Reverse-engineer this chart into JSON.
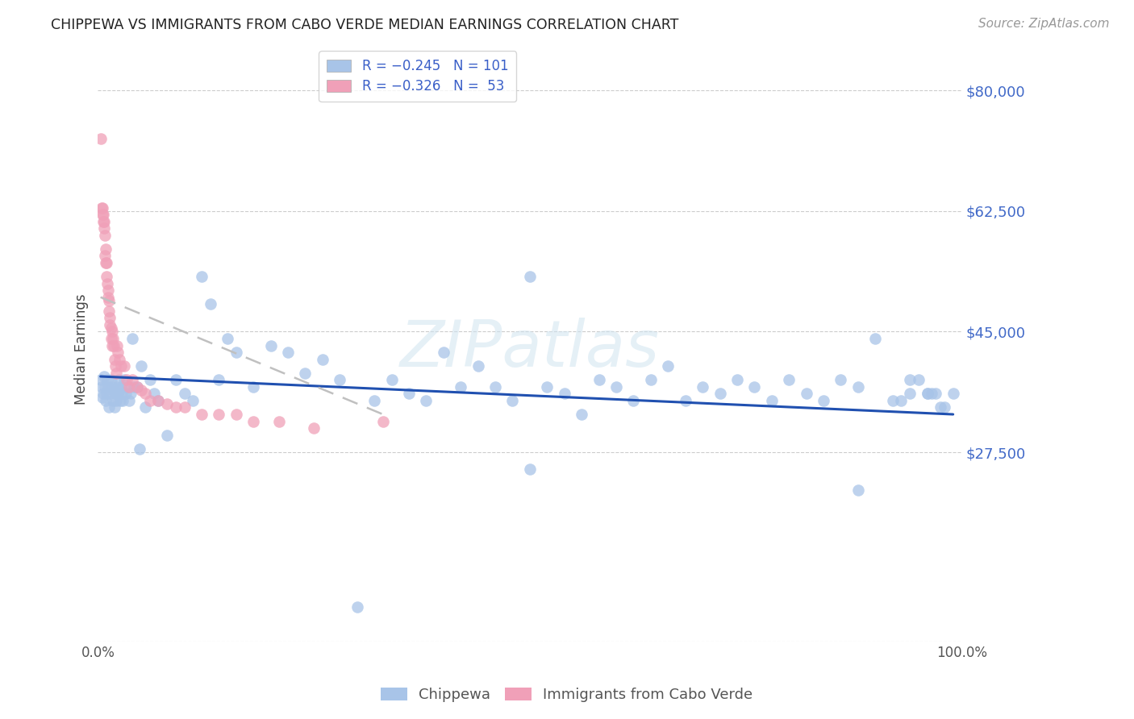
{
  "title": "CHIPPEWA VS IMMIGRANTS FROM CABO VERDE MEDIAN EARNINGS CORRELATION CHART",
  "source": "Source: ZipAtlas.com",
  "ylabel": "Median Earnings",
  "yticks": [
    0,
    27500,
    45000,
    62500,
    80000
  ],
  "ytick_labels": [
    "",
    "$27,500",
    "$45,000",
    "$62,500",
    "$80,000"
  ],
  "ylim": [
    0,
    85000
  ],
  "xlim": [
    0.0,
    1.0
  ],
  "blue_color": "#a8c4e8",
  "pink_color": "#f0a0b8",
  "blue_line_color": "#2050b0",
  "pink_line_color": "#c87080",
  "pink_line_style": "dashed_gray",
  "watermark_text": "ZIPatlas",
  "watermark_color": "#d0e4f0",
  "legend1_label1": "R = −0.245   N = 101",
  "legend1_label2": "R = −0.326   N =  53",
  "legend2_label1": "Chippewa",
  "legend2_label2": "Immigrants from Cabo Verde",
  "blue_scatter_x": [
    0.003,
    0.004,
    0.005,
    0.006,
    0.007,
    0.008,
    0.009,
    0.01,
    0.011,
    0.012,
    0.013,
    0.014,
    0.015,
    0.016,
    0.017,
    0.018,
    0.019,
    0.02,
    0.021,
    0.022,
    0.023,
    0.024,
    0.025,
    0.026,
    0.027,
    0.028,
    0.029,
    0.03,
    0.032,
    0.034,
    0.036,
    0.038,
    0.04,
    0.042,
    0.045,
    0.048,
    0.05,
    0.055,
    0.06,
    0.065,
    0.07,
    0.08,
    0.09,
    0.1,
    0.11,
    0.12,
    0.13,
    0.14,
    0.15,
    0.16,
    0.18,
    0.2,
    0.22,
    0.24,
    0.26,
    0.28,
    0.3,
    0.32,
    0.34,
    0.36,
    0.38,
    0.4,
    0.42,
    0.44,
    0.46,
    0.48,
    0.5,
    0.52,
    0.54,
    0.56,
    0.58,
    0.6,
    0.62,
    0.64,
    0.66,
    0.68,
    0.7,
    0.72,
    0.74,
    0.76,
    0.78,
    0.8,
    0.82,
    0.84,
    0.86,
    0.88,
    0.9,
    0.92,
    0.94,
    0.96,
    0.975,
    0.99,
    0.5,
    0.88,
    0.93,
    0.95,
    0.965,
    0.98,
    0.97,
    0.96,
    0.94
  ],
  "blue_scatter_y": [
    38000,
    37000,
    35500,
    36000,
    38500,
    37000,
    35000,
    36000,
    38000,
    37000,
    34000,
    36000,
    38000,
    37000,
    35000,
    36500,
    34000,
    36000,
    35000,
    37000,
    36000,
    38000,
    36500,
    35000,
    37000,
    36000,
    35000,
    38000,
    36000,
    37000,
    35000,
    36000,
    44000,
    37000,
    37000,
    28000,
    40000,
    34000,
    38000,
    36000,
    35000,
    30000,
    38000,
    36000,
    35000,
    53000,
    49000,
    38000,
    44000,
    42000,
    37000,
    43000,
    42000,
    39000,
    41000,
    38000,
    5000,
    35000,
    38000,
    36000,
    35000,
    42000,
    37000,
    40000,
    37000,
    35000,
    53000,
    37000,
    36000,
    33000,
    38000,
    37000,
    35000,
    38000,
    40000,
    35000,
    37000,
    36000,
    38000,
    37000,
    35000,
    38000,
    36000,
    35000,
    38000,
    37000,
    44000,
    35000,
    38000,
    36000,
    34000,
    36000,
    25000,
    22000,
    35000,
    38000,
    36000,
    34000,
    36000,
    36000,
    36000
  ],
  "pink_scatter_x": [
    0.003,
    0.004,
    0.005,
    0.005,
    0.006,
    0.006,
    0.007,
    0.007,
    0.008,
    0.008,
    0.009,
    0.009,
    0.01,
    0.01,
    0.011,
    0.012,
    0.012,
    0.013,
    0.013,
    0.014,
    0.014,
    0.015,
    0.015,
    0.016,
    0.016,
    0.017,
    0.018,
    0.019,
    0.02,
    0.021,
    0.022,
    0.023,
    0.025,
    0.027,
    0.03,
    0.033,
    0.036,
    0.04,
    0.045,
    0.05,
    0.055,
    0.06,
    0.07,
    0.08,
    0.09,
    0.1,
    0.12,
    0.14,
    0.16,
    0.18,
    0.21,
    0.25,
    0.33
  ],
  "pink_scatter_y": [
    73000,
    63000,
    63000,
    62000,
    62000,
    61000,
    61000,
    60000,
    59000,
    56000,
    57000,
    55000,
    55000,
    53000,
    52000,
    51000,
    50000,
    49500,
    48000,
    47000,
    46000,
    45500,
    44000,
    45000,
    43000,
    44000,
    43000,
    41000,
    40000,
    39000,
    43000,
    42000,
    41000,
    40000,
    40000,
    38000,
    37000,
    38000,
    37000,
    36500,
    36000,
    35000,
    35000,
    34500,
    34000,
    34000,
    33000,
    33000,
    33000,
    32000,
    32000,
    31000,
    32000
  ],
  "blue_line_x": [
    0.003,
    0.99
  ],
  "blue_line_y": [
    38500,
    33000
  ],
  "pink_line_x": [
    0.003,
    0.33
  ],
  "pink_line_y": [
    50000,
    33000
  ]
}
